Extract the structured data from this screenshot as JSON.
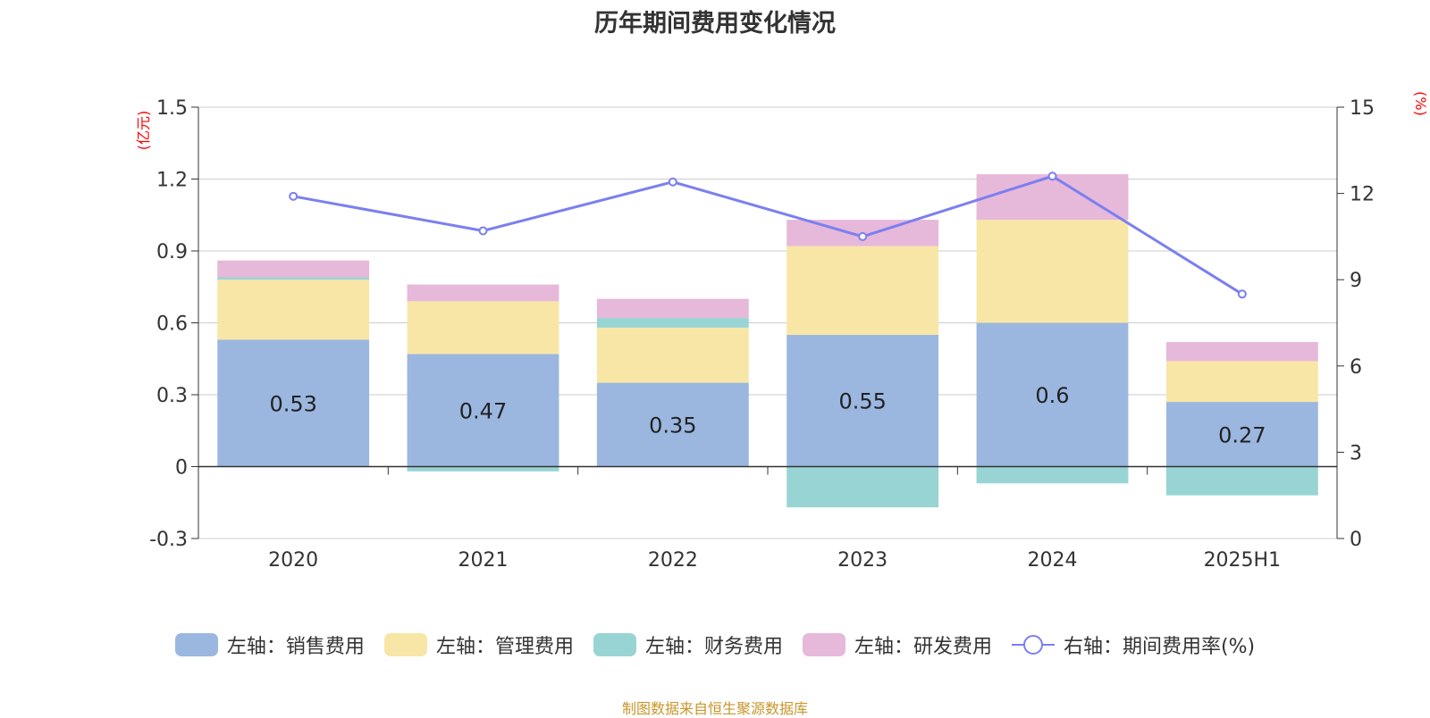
{
  "chart_data": {
    "type": "bar",
    "title": "历年期间费用变化情况",
    "categories": [
      "2020",
      "2021",
      "2022",
      "2023",
      "2024",
      "2025H1"
    ],
    "stacked": true,
    "series": [
      {
        "name": "左轴：销售费用",
        "axis": "left",
        "type": "bar",
        "color": "#9bb7e0",
        "values": [
          0.53,
          0.47,
          0.35,
          0.55,
          0.6,
          0.27
        ],
        "labels_shown": true
      },
      {
        "name": "左轴：管理费用",
        "axis": "left",
        "type": "bar",
        "color": "#f8e6a6",
        "values": [
          0.25,
          0.22,
          0.23,
          0.37,
          0.43,
          0.17
        ]
      },
      {
        "name": "左轴：财务费用",
        "axis": "left",
        "type": "bar",
        "color": "#98d4d4",
        "values": [
          0.01,
          -0.02,
          0.04,
          -0.17,
          -0.07,
          -0.12
        ]
      },
      {
        "name": "左轴：研发费用",
        "axis": "left",
        "type": "bar",
        "color": "#e6b8da",
        "values": [
          0.07,
          0.07,
          0.08,
          0.11,
          0.19,
          0.08
        ]
      },
      {
        "name": "右轴：期间费用率(%)",
        "axis": "right",
        "type": "line",
        "color": "#7b7fef",
        "values": [
          11.9,
          10.7,
          12.4,
          10.5,
          12.6,
          8.5
        ]
      }
    ],
    "left_axis": {
      "unit": "(亿元)",
      "min": -0.3,
      "max": 1.5,
      "ticks": [
        "-0.3",
        "0",
        "0.3",
        "0.6",
        "0.9",
        "1.2",
        "1.5"
      ]
    },
    "right_axis": {
      "unit": "(%)",
      "min": 0,
      "max": 15,
      "ticks": [
        "0",
        "3",
        "6",
        "9",
        "12",
        "15"
      ]
    },
    "grid": true,
    "legend_position": "bottom"
  },
  "source": "制图数据来自恒生聚源数据库",
  "colors": {
    "unit_label": "#ff0000",
    "axis": "#333333",
    "grid": "#cccccc"
  }
}
